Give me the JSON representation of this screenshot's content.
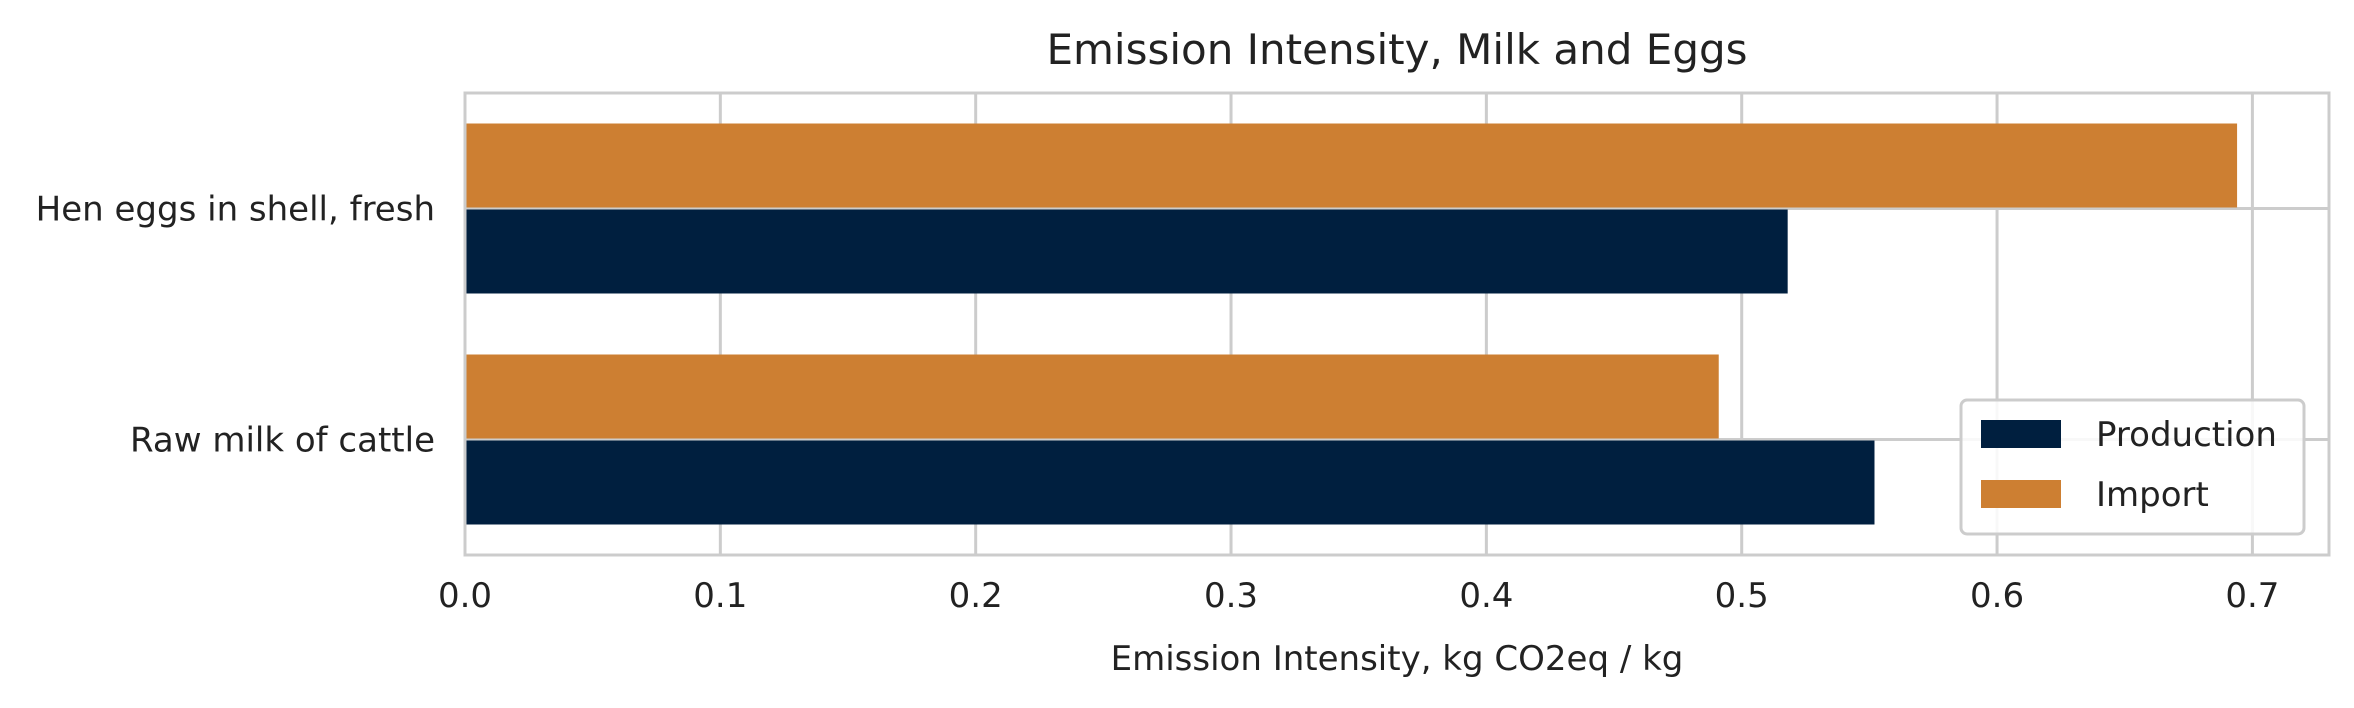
{
  "chart_data": {
    "type": "bar",
    "orientation": "horizontal",
    "title": "Emission Intensity, Milk and Eggs",
    "xlabel": "Emission Intensity, kg CO2eq / kg",
    "ylabel": "",
    "categories": [
      "Hen eggs in shell, fresh",
      "Raw milk of cattle"
    ],
    "series": [
      {
        "name": "Import",
        "values": [
          0.694,
          0.491
        ],
        "color": "#cd7f32"
      },
      {
        "name": "Production",
        "values": [
          0.518,
          0.552
        ],
        "color": "#001f3f"
      }
    ],
    "xlim": [
      0,
      0.73
    ],
    "xticks": [
      0.0,
      0.1,
      0.2,
      0.3,
      0.4,
      0.5,
      0.6,
      0.7
    ],
    "xtick_labels": [
      "0.0",
      "0.1",
      "0.2",
      "0.3",
      "0.4",
      "0.5",
      "0.6",
      "0.7"
    ],
    "grid": true,
    "legend": {
      "position": "lower-right",
      "entries": [
        {
          "name": "Production",
          "color": "#001f3f"
        },
        {
          "name": "Import",
          "color": "#cd7f32"
        }
      ]
    }
  }
}
